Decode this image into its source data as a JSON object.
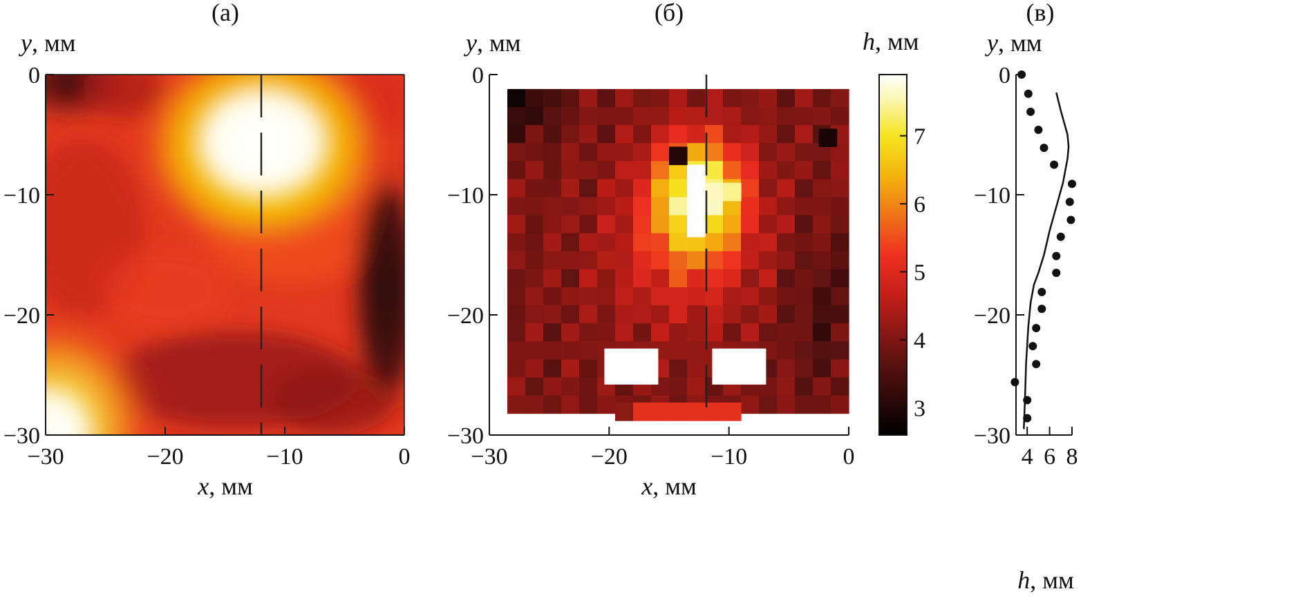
{
  "figure": {
    "panel_labels": [
      "(а)",
      "(б)",
      "(в)"
    ]
  },
  "chart_data": [
    {
      "type": "heatmap",
      "panel": "(а)",
      "xlabel_var": "x",
      "xlabel_unit": ", мм",
      "ylabel_var": "y",
      "ylabel_unit": ", мм",
      "xlim": [
        -30,
        0
      ],
      "ylim": [
        -30,
        0
      ],
      "xticks": [
        "−30",
        "−20",
        "−10",
        "0"
      ],
      "yticks": [
        "0",
        "−10",
        "−20",
        "−30"
      ],
      "section_line_x": -12,
      "hotspots": [
        {
          "x": -13,
          "y": -6,
          "h": 7.8
        },
        {
          "x": -30,
          "y": -30,
          "h": 7.8
        },
        {
          "x": -30,
          "y": 0,
          "h": 2.6
        },
        {
          "x": 0,
          "y": -18,
          "h": 2.8
        },
        {
          "x": -15,
          "y": -26,
          "h": 3.6
        }
      ]
    },
    {
      "type": "heatmap",
      "panel": "(б)",
      "xlabel_var": "x",
      "xlabel_unit": ", мм",
      "ylabel_var": "y",
      "ylabel_unit": ", мм",
      "xlim": [
        -30,
        0
      ],
      "ylim": [
        -30,
        0
      ],
      "xticks": [
        "−30",
        "−20",
        "−10",
        "0"
      ],
      "yticks": [
        "0",
        "−10",
        "−20",
        "−30"
      ],
      "section_line_x": -12,
      "colorbar": {
        "label_var": "h",
        "label_unit": ", мм",
        "range": [
          2.6,
          7.9
        ],
        "ticks": [
          "7",
          "6",
          "5",
          "4",
          "3"
        ]
      }
    },
    {
      "type": "line",
      "panel": "(в)",
      "xlabel_var": "h",
      "xlabel_unit": ", мм",
      "ylabel_var": "y",
      "ylabel_unit": ", мм",
      "xlim": [
        3,
        8
      ],
      "ylim": [
        -30,
        0
      ],
      "xticks": [
        "4",
        "6",
        "8"
      ],
      "yticks": [
        "0",
        "−10",
        "−20",
        "−30"
      ],
      "series": [
        {
          "name": "line",
          "y": [
            -1.5,
            -3,
            -5,
            -6,
            -7,
            -9,
            -11,
            -13,
            -15,
            -16.5,
            -17.5,
            -19,
            -21,
            -24,
            -27,
            -29.5
          ],
          "h": [
            6.6,
            7.0,
            7.6,
            7.7,
            7.6,
            7.2,
            6.6,
            6.0,
            5.5,
            5.0,
            4.6,
            4.3,
            4.1,
            3.9,
            3.8,
            3.7
          ]
        },
        {
          "name": "points",
          "y": [
            0,
            -1.6,
            -3.1,
            -4.6,
            -6.1,
            -7.5,
            -9.1,
            -10.6,
            -12.1,
            -13.5,
            -15.1,
            -16.5,
            -18.1,
            -19.5,
            -21.1,
            -22.6,
            -24.1,
            -25.6,
            -27.1,
            -28.6
          ],
          "h": [
            3.5,
            4.1,
            4.3,
            5.0,
            5.5,
            6.4,
            8.0,
            7.8,
            7.9,
            7.0,
            6.6,
            6.6,
            5.3,
            5.3,
            4.8,
            4.5,
            4.8,
            2.9,
            4.0,
            4.0
          ]
        }
      ]
    }
  ]
}
